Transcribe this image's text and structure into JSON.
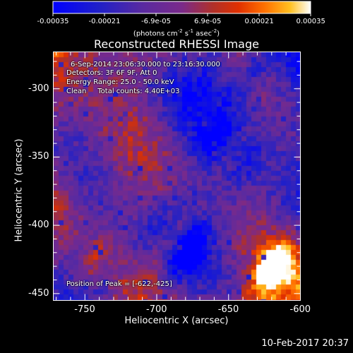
{
  "colorbar": {
    "tick_labels": [
      "-0.00035",
      "-0.00021",
      "-6.9e-05",
      "6.9e-05",
      "0.00021",
      "0.00035"
    ],
    "units_prefix": "(photons cm",
    "units_exp1": "-2",
    "units_mid1": " s",
    "units_exp2": "-1",
    "units_mid2": " asec",
    "units_exp3": "-2",
    "units_suffix": ")",
    "range": [
      -0.00035,
      0.00035
    ]
  },
  "title": "Reconstructed RHESSI Image",
  "info_lines": [
    "6-Sep-2014 23:06:30.000 to 23:16:30.000",
    "Detectors: 3F 6F 9F, Att 0",
    "Energy Range: 25.0 - 50.0 keV",
    "Clean     Total counts: 4.40E+03"
  ],
  "peak_text": "Position of Peak = [-622,-425]",
  "axes": {
    "xlabel": "Heliocentric X (arcsec)",
    "ylabel": "Heliocentric Y (arcsec)",
    "x_ticks": [
      "-750",
      "-700",
      "-650",
      "-600"
    ],
    "y_ticks": [
      "-300",
      "-350",
      "-400",
      "-450"
    ],
    "xlim": [
      -772,
      -600
    ],
    "ylim": [
      -455,
      -273
    ]
  },
  "timestamp": "10-Feb-2017 20:37",
  "colors": {
    "background": "#000000",
    "foreground": "#ffffff"
  },
  "chart_data": {
    "type": "heatmap",
    "colormap": "blue-purple-red-yellow-white (IDL rainbow-like)",
    "value_range": [
      -0.00035,
      0.00035
    ],
    "peak": {
      "x": -622,
      "y": -425
    },
    "xlim": [
      -772,
      -600
    ],
    "ylim": [
      -455,
      -273
    ],
    "grid": false
  }
}
